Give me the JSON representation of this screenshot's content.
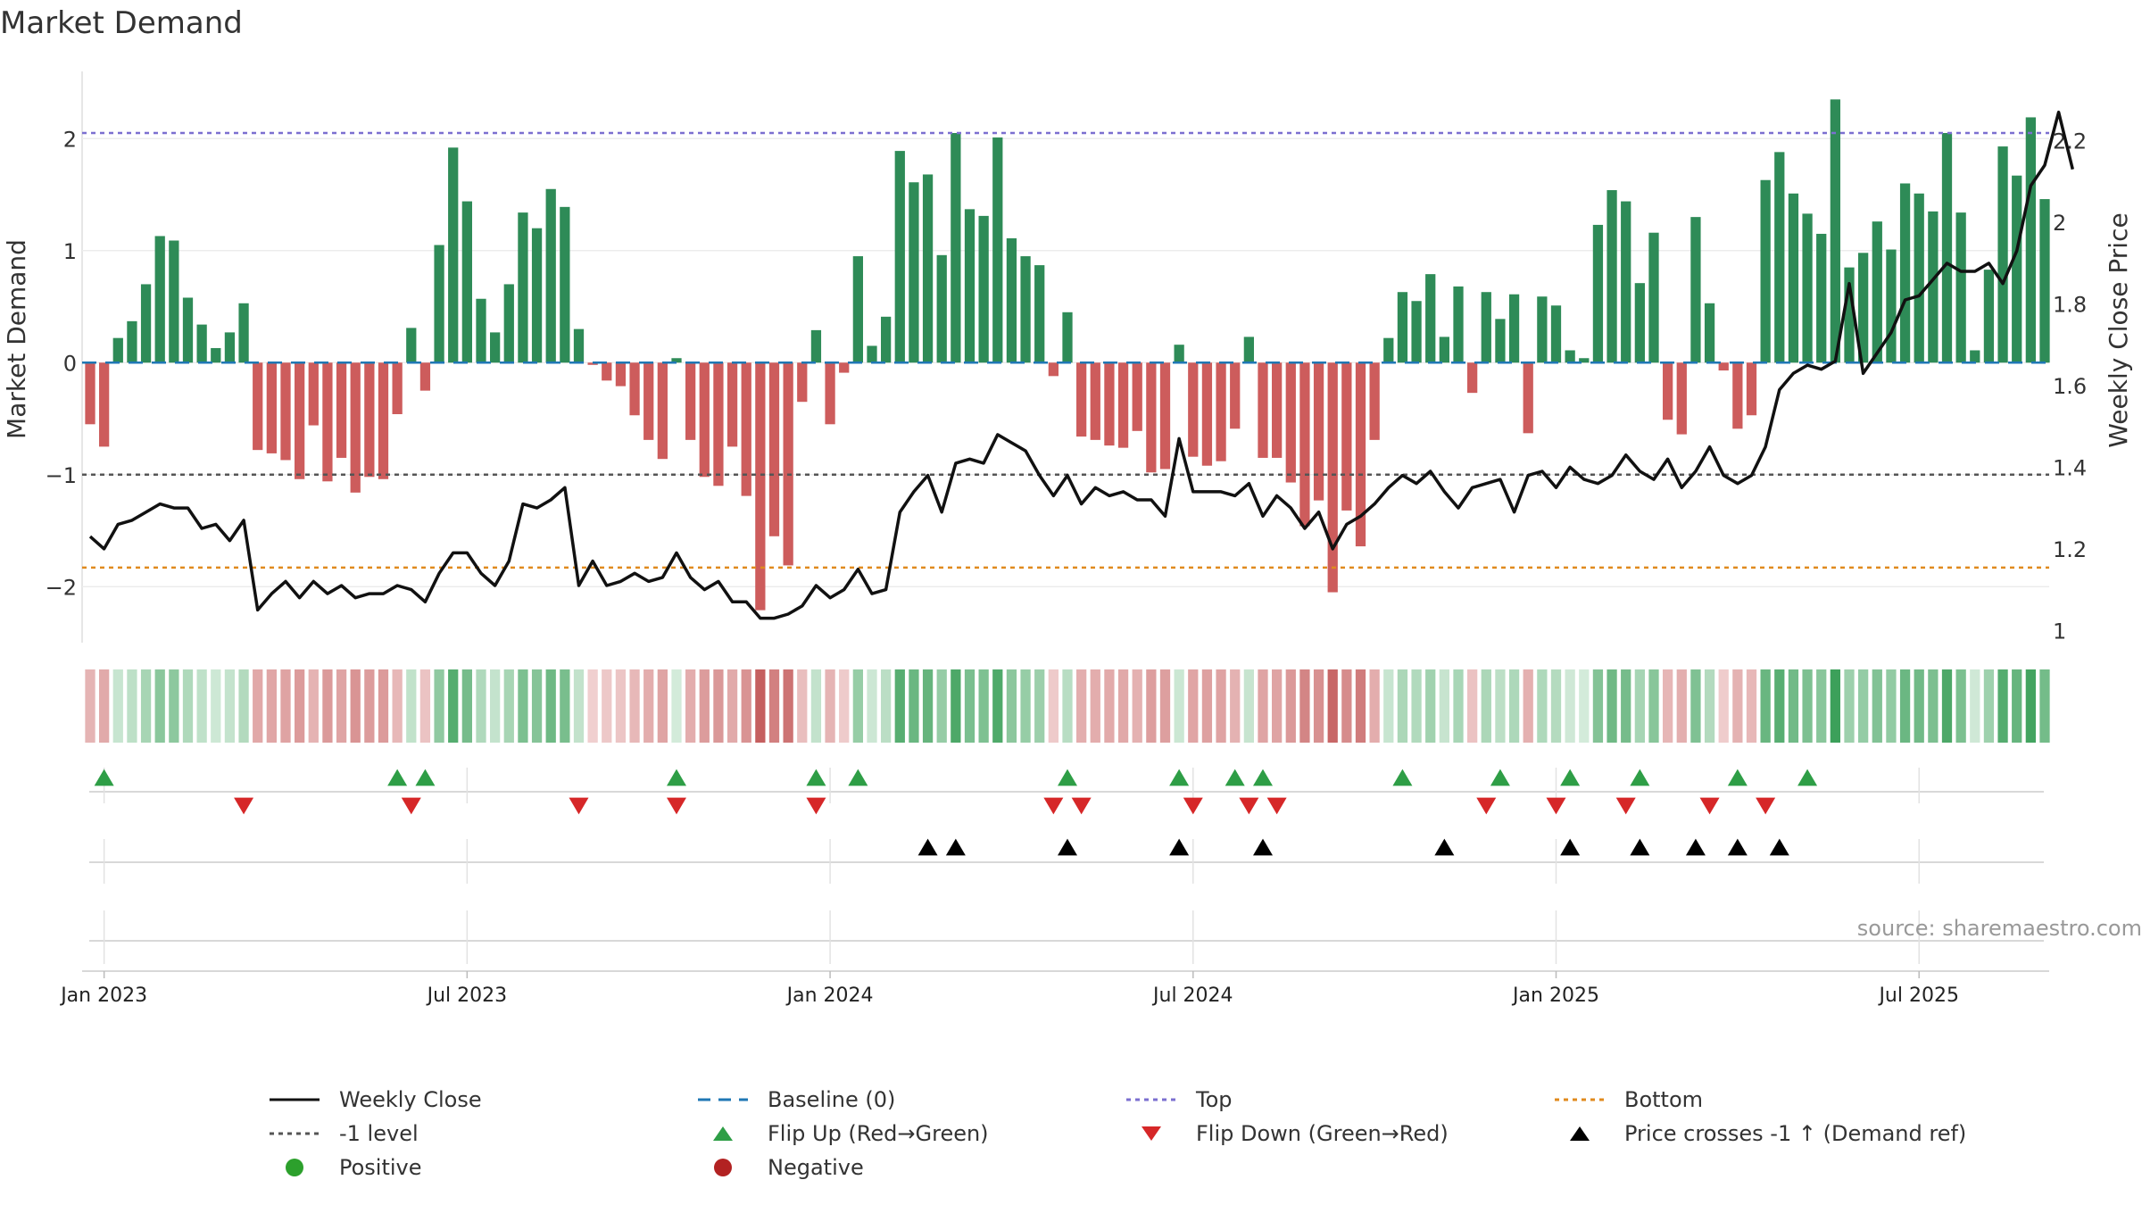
{
  "chart_data": {
    "type": "bar+line",
    "title": "Market Demand",
    "source": "source: sharemaestro.com",
    "left_axis": {
      "label": "Market Demand",
      "ylim": [
        -2.5,
        2.6
      ],
      "ticks": [
        2,
        1,
        0,
        -1,
        -2
      ],
      "tick_labels": [
        "2",
        "1",
        "0",
        "−1",
        "−2"
      ]
    },
    "right_axis": {
      "label": "Weekly Close Price",
      "ylim": [
        0.97,
        2.37
      ],
      "ticks": [
        2.2,
        2,
        1.8,
        1.6,
        1.4,
        1.2,
        1
      ],
      "tick_labels": [
        "2.2",
        "2",
        "1.8",
        "1.6",
        "1.4",
        "1.2",
        "1"
      ]
    },
    "x_axis": {
      "ticks": [
        1,
        27,
        53,
        79,
        105,
        131
      ],
      "tick_labels": [
        "Jan 2023",
        "Jul 2023",
        "Jan 2024",
        "Jul 2024",
        "Jan 2025",
        "Jul 2025"
      ]
    },
    "reference_lines": {
      "top": 2.05,
      "bottom": -1.83,
      "minus_one": -1,
      "baseline": 0
    },
    "demand": [
      -0.55,
      -0.75,
      0.22,
      0.37,
      0.7,
      1.13,
      1.09,
      0.58,
      0.34,
      0.13,
      0.27,
      0.53,
      -0.78,
      -0.81,
      -0.87,
      -1.04,
      -0.56,
      -1.06,
      -0.85,
      -1.16,
      -1.02,
      -1.04,
      -0.46,
      0.31,
      -0.25,
      1.05,
      1.92,
      1.44,
      0.57,
      0.27,
      0.7,
      1.34,
      1.2,
      1.55,
      1.39,
      0.3,
      -0.02,
      -0.16,
      -0.21,
      -0.47,
      -0.69,
      -0.86,
      0.04,
      -0.69,
      -1.02,
      -1.1,
      -0.75,
      -1.19,
      -2.21,
      -1.55,
      -1.81,
      -0.35,
      0.29,
      -0.55,
      -0.09,
      0.95,
      0.15,
      0.41,
      1.89,
      1.61,
      1.68,
      0.96,
      2.05,
      1.37,
      1.31,
      2.01,
      1.11,
      0.95,
      0.87,
      -0.12,
      0.45,
      -0.66,
      -0.69,
      -0.74,
      -0.76,
      -0.61,
      -0.98,
      -0.95,
      0.16,
      -0.84,
      -0.92,
      -0.88,
      -0.59,
      0.23,
      -0.85,
      -0.85,
      -1.07,
      -1.46,
      -1.23,
      -2.05,
      -1.32,
      -1.64,
      -0.69,
      0.22,
      0.63,
      0.55,
      0.79,
      0.23,
      0.68,
      -0.27,
      0.63,
      0.39,
      0.61,
      -0.63,
      0.59,
      0.51,
      0.11,
      0.04,
      1.23,
      1.54,
      1.44,
      0.71,
      1.16,
      -0.51,
      -0.64,
      1.3,
      0.53,
      -0.07,
      -0.59,
      -0.47,
      1.63,
      1.88,
      1.51,
      1.33,
      1.15,
      2.35,
      0.85,
      0.98,
      1.26,
      1.01,
      1.6,
      1.51,
      1.35,
      2.05,
      1.34,
      0.11,
      0.83,
      1.93,
      1.67,
      2.19,
      1.46
    ],
    "weekly_close": [
      1.23,
      1.2,
      1.26,
      1.27,
      1.29,
      1.31,
      1.3,
      1.3,
      1.25,
      1.26,
      1.22,
      1.27,
      1.05,
      1.09,
      1.12,
      1.08,
      1.12,
      1.09,
      1.11,
      1.08,
      1.09,
      1.09,
      1.11,
      1.1,
      1.07,
      1.14,
      1.19,
      1.19,
      1.14,
      1.11,
      1.17,
      1.31,
      1.3,
      1.32,
      1.35,
      1.11,
      1.17,
      1.11,
      1.12,
      1.14,
      1.12,
      1.13,
      1.19,
      1.13,
      1.1,
      1.12,
      1.07,
      1.07,
      1.03,
      1.03,
      1.04,
      1.06,
      1.11,
      1.08,
      1.1,
      1.15,
      1.09,
      1.1,
      1.29,
      1.34,
      1.38,
      1.29,
      1.41,
      1.42,
      1.41,
      1.48,
      1.46,
      1.44,
      1.38,
      1.33,
      1.38,
      1.31,
      1.35,
      1.33,
      1.34,
      1.32,
      1.32,
      1.28,
      1.47,
      1.34,
      1.34,
      1.34,
      1.33,
      1.36,
      1.28,
      1.33,
      1.3,
      1.25,
      1.29,
      1.2,
      1.26,
      1.28,
      1.31,
      1.35,
      1.38,
      1.36,
      1.39,
      1.34,
      1.3,
      1.35,
      1.36,
      1.37,
      1.29,
      1.38,
      1.39,
      1.35,
      1.4,
      1.37,
      1.36,
      1.38,
      1.43,
      1.39,
      1.37,
      1.42,
      1.35,
      1.39,
      1.45,
      1.38,
      1.36,
      1.38,
      1.45,
      1.59,
      1.63,
      1.65,
      1.64,
      1.66,
      1.85,
      1.63,
      1.68,
      1.73,
      1.81,
      1.82,
      1.86,
      1.9,
      1.88,
      1.88,
      1.9,
      1.85,
      1.93,
      2.09,
      2.14,
      2.27,
      2.13
    ],
    "strip_scale": "color = green for positive demand, red for negative; intensity by magnitude",
    "markers": {
      "flip_up_weeks": [
        1,
        22,
        24,
        42,
        52,
        55,
        70,
        78,
        82,
        84,
        94,
        101,
        106,
        111,
        118,
        123
      ],
      "flip_down_weeks": [
        11,
        23,
        35,
        42,
        52,
        69,
        71,
        79,
        83,
        85,
        100,
        105,
        110,
        116,
        120
      ],
      "price_cross_weeks": [
        60,
        62,
        70,
        78,
        84,
        97,
        106,
        111,
        115,
        118,
        121
      ]
    },
    "legend": [
      {
        "key": "weekly_close",
        "label": "Weekly Close",
        "color": "#111111"
      },
      {
        "key": "baseline",
        "label": "Baseline (0)",
        "color": "#1f77b4"
      },
      {
        "key": "top",
        "label": "Top",
        "color": "#7b6fd0"
      },
      {
        "key": "bottom",
        "label": "Bottom",
        "color": "#e08a1e"
      },
      {
        "key": "minus_one",
        "label": "-1 level",
        "color": "#555555"
      },
      {
        "key": "flip_up",
        "label": "Flip Up (Red→Green)",
        "color": "#2e9e46"
      },
      {
        "key": "flip_down",
        "label": "Flip Down (Green→Red)",
        "color": "#d62728"
      },
      {
        "key": "price_cross",
        "label": "Price crosses -1 ↑ (Demand ref)",
        "color": "#000000"
      },
      {
        "key": "positive",
        "label": "Positive",
        "color": "#2ca02c"
      },
      {
        "key": "negative",
        "label": "Negative",
        "color": "#b22222"
      }
    ],
    "colors": {
      "positive_bar": "#2e8b57",
      "negative_bar": "#cd5c5c"
    }
  }
}
